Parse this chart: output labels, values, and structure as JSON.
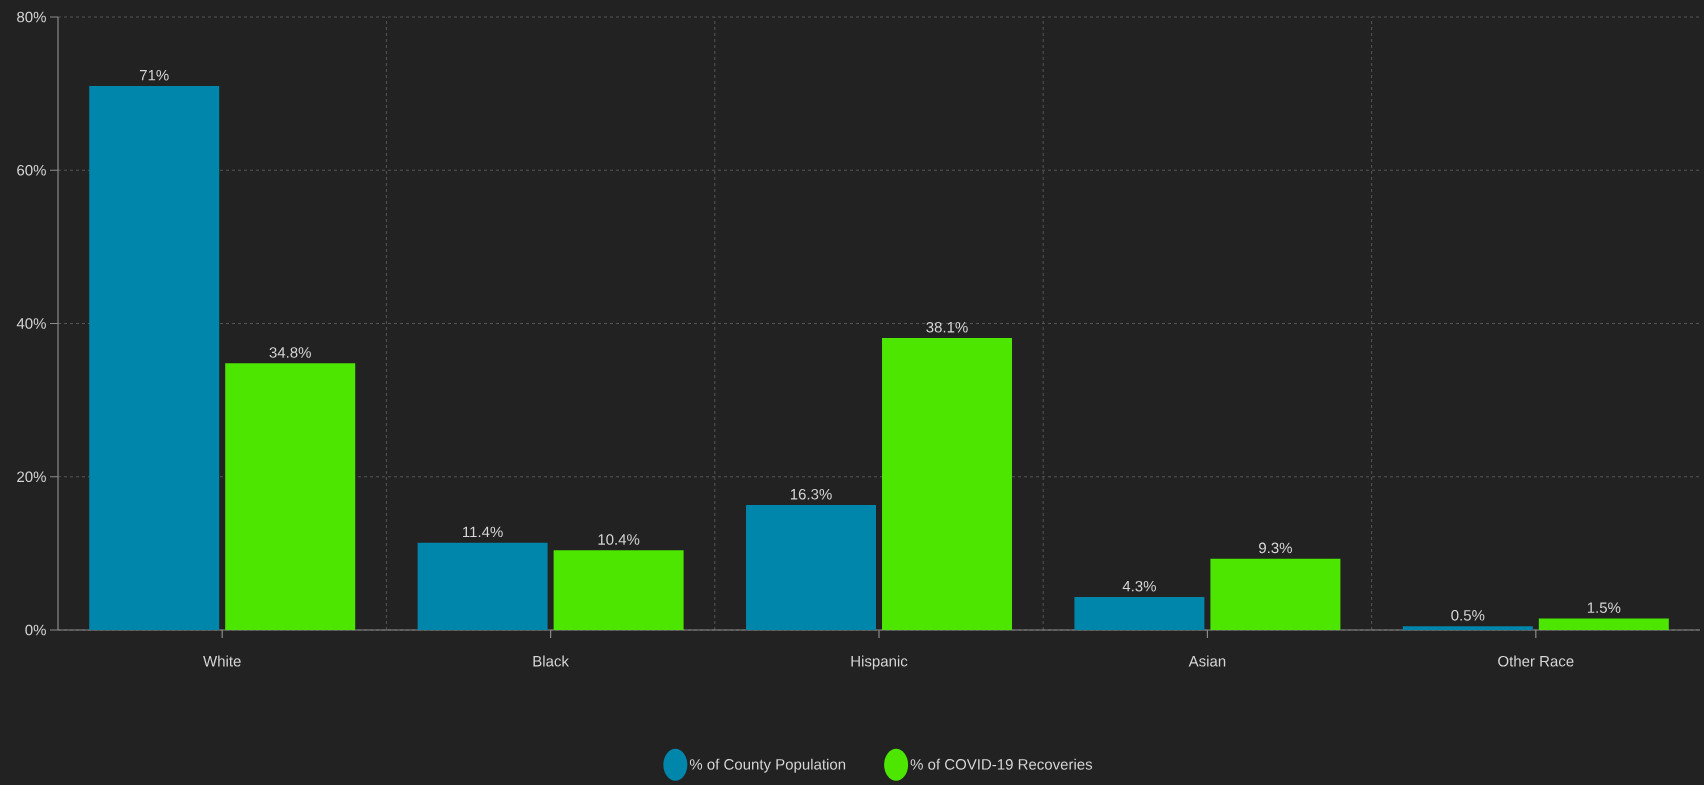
{
  "chart_data": {
    "type": "bar",
    "categories": [
      "White",
      "Black",
      "Hispanic",
      "Asian",
      "Other Race"
    ],
    "series": [
      {
        "name": "% of County Population",
        "color": "#0085ab",
        "values": [
          71,
          11.4,
          16.3,
          4.3,
          0.5
        ],
        "value_labels": [
          "71%",
          "11.4%",
          "16.3%",
          "4.3%",
          "0.5%"
        ]
      },
      {
        "name": "% of COVID-19 Recoveries",
        "color": "#4ce600",
        "values": [
          34.8,
          10.4,
          38.1,
          9.3,
          1.5
        ],
        "value_labels": [
          "34.8%",
          "10.4%",
          "38.1%",
          "9.3%",
          "1.5%"
        ]
      }
    ],
    "ylim": [
      0,
      80
    ],
    "yticks": [
      {
        "value": 0,
        "label": "0%"
      },
      {
        "value": 20,
        "label": "20%"
      },
      {
        "value": 40,
        "label": "40%"
      },
      {
        "value": 60,
        "label": "60%"
      },
      {
        "value": 80,
        "label": "80%"
      }
    ],
    "grid": true,
    "legend": "bottom",
    "marker": "circle"
  }
}
